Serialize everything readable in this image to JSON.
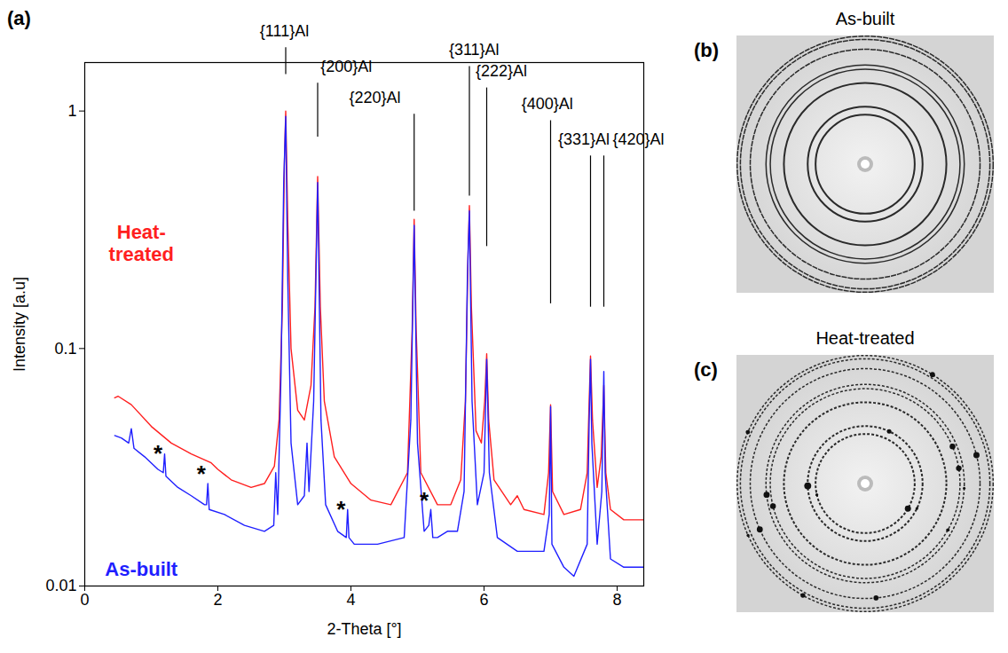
{
  "chart_data": {
    "type": "line",
    "panel": "(a)",
    "x_label": "2-Theta [°]",
    "y_label": "Intensity [a.u]",
    "log": "y",
    "grid": false,
    "xlim": [
      0,
      8.4
    ],
    "xticks": [
      0,
      2,
      4,
      6,
      8
    ],
    "ylim": [
      0.01,
      1.6
    ],
    "yticks": [
      0.01,
      0.1,
      1
    ],
    "series": [
      {
        "name": "Heat-treated",
        "color": "#ff1f1f",
        "label_x": 0.85,
        "label_y": 0.28,
        "x": [
          0.45,
          0.5,
          0.7,
          1.0,
          1.3,
          1.6,
          1.9,
          2.0,
          2.2,
          2.5,
          2.7,
          2.85,
          2.92,
          2.97,
          3.0,
          3.02,
          3.05,
          3.1,
          3.2,
          3.3,
          3.4,
          3.46,
          3.5,
          3.54,
          3.6,
          3.75,
          4.0,
          4.3,
          4.6,
          4.85,
          4.92,
          4.95,
          4.98,
          5.05,
          5.3,
          5.5,
          5.65,
          5.72,
          5.76,
          5.78,
          5.81,
          5.88,
          5.96,
          6.01,
          6.04,
          6.07,
          6.15,
          6.4,
          6.5,
          6.6,
          6.9,
          6.97,
          7.0,
          7.03,
          7.2,
          7.45,
          7.55,
          7.58,
          7.6,
          7.63,
          7.7,
          7.76,
          7.8,
          7.83,
          7.9,
          8.1,
          8.4
        ],
        "values": [
          0.062,
          0.063,
          0.058,
          0.047,
          0.04,
          0.036,
          0.033,
          0.031,
          0.028,
          0.026,
          0.027,
          0.032,
          0.05,
          0.15,
          0.6,
          1.0,
          0.35,
          0.1,
          0.055,
          0.05,
          0.07,
          0.15,
          0.53,
          0.15,
          0.06,
          0.035,
          0.027,
          0.023,
          0.022,
          0.03,
          0.12,
          0.35,
          0.12,
          0.03,
          0.022,
          0.022,
          0.028,
          0.06,
          0.25,
          0.4,
          0.15,
          0.045,
          0.04,
          0.06,
          0.095,
          0.05,
          0.028,
          0.022,
          0.024,
          0.021,
          0.02,
          0.03,
          0.058,
          0.025,
          0.02,
          0.021,
          0.03,
          0.06,
          0.093,
          0.05,
          0.026,
          0.035,
          0.07,
          0.03,
          0.021,
          0.019,
          0.019
        ]
      },
      {
        "name": "As-built",
        "color": "#1f1fff",
        "label_x": 0.85,
        "label_y": 0.0118,
        "x": [
          0.45,
          0.55,
          0.66,
          0.7,
          0.74,
          0.9,
          1.1,
          1.18,
          1.2,
          1.22,
          1.4,
          1.6,
          1.8,
          1.83,
          1.85,
          1.87,
          2.1,
          2.4,
          2.7,
          2.84,
          2.87,
          2.9,
          2.95,
          2.99,
          3.02,
          3.05,
          3.1,
          3.2,
          3.3,
          3.34,
          3.37,
          3.44,
          3.5,
          3.55,
          3.62,
          3.8,
          3.93,
          3.95,
          3.97,
          4.05,
          4.4,
          4.8,
          4.9,
          4.95,
          5.0,
          5.1,
          5.17,
          5.2,
          5.23,
          5.3,
          5.45,
          5.6,
          5.7,
          5.75,
          5.78,
          5.82,
          5.9,
          6.0,
          6.04,
          6.08,
          6.2,
          6.5,
          6.9,
          6.98,
          7.0,
          7.02,
          7.2,
          7.35,
          7.55,
          7.58,
          7.6,
          7.62,
          7.7,
          7.77,
          7.8,
          7.82,
          7.9,
          8.1,
          8.4
        ],
        "values": [
          0.043,
          0.042,
          0.04,
          0.046,
          0.038,
          0.035,
          0.031,
          0.03,
          0.036,
          0.029,
          0.026,
          0.024,
          0.022,
          0.022,
          0.027,
          0.021,
          0.02,
          0.018,
          0.017,
          0.018,
          0.03,
          0.02,
          0.08,
          0.5,
          0.95,
          0.2,
          0.04,
          0.022,
          0.024,
          0.04,
          0.025,
          0.06,
          0.5,
          0.05,
          0.022,
          0.017,
          0.016,
          0.021,
          0.016,
          0.015,
          0.015,
          0.016,
          0.05,
          0.33,
          0.04,
          0.017,
          0.018,
          0.021,
          0.016,
          0.016,
          0.017,
          0.017,
          0.025,
          0.2,
          0.38,
          0.06,
          0.022,
          0.03,
          0.09,
          0.03,
          0.016,
          0.014,
          0.014,
          0.02,
          0.057,
          0.015,
          0.012,
          0.011,
          0.015,
          0.05,
          0.09,
          0.04,
          0.015,
          0.025,
          0.08,
          0.03,
          0.013,
          0.012,
          0.012
        ]
      }
    ],
    "annotations": [
      {
        "text": "{111}Al",
        "x": 3.0,
        "y": 2.17,
        "line_x": 3.02,
        "line_y": 1.43
      },
      {
        "text": "{200}Al",
        "x": 3.93,
        "y": 1.54,
        "line_x": 3.5,
        "line_y": 0.78
      },
      {
        "text": "{220}Al",
        "x": 4.36,
        "y": 1.14,
        "line_x": 4.95,
        "line_y": 0.38
      },
      {
        "text": "{311}Al",
        "x": 5.85,
        "y": 1.81,
        "line_x": 5.78,
        "line_y": 0.44
      },
      {
        "text": "{222}Al",
        "x": 6.26,
        "y": 1.47,
        "line_x": 6.04,
        "line_y": 0.27
      },
      {
        "text": "{400}Al",
        "x": 6.95,
        "y": 1.07,
        "line_x": 7.0,
        "line_y": 0.155
      },
      {
        "text": "{331}Al",
        "x": 7.5,
        "y": 0.76,
        "line_x": 7.6,
        "line_y": 0.15
      },
      {
        "text": "{420}Al",
        "x": 8.32,
        "y": 0.76,
        "line_x": 7.8,
        "line_y": 0.15
      },
      {
        "text": "*",
        "x": 1.1,
        "y": 0.038
      },
      {
        "text": "*",
        "x": 1.75,
        "y": 0.031
      },
      {
        "text": "*",
        "x": 3.85,
        "y": 0.022
      },
      {
        "text": "*",
        "x": 5.1,
        "y": 0.024
      }
    ]
  },
  "images": [
    {
      "letter": "(b)",
      "title": "As-built"
    },
    {
      "letter": "(c)",
      "title": "Heat-treated"
    }
  ]
}
